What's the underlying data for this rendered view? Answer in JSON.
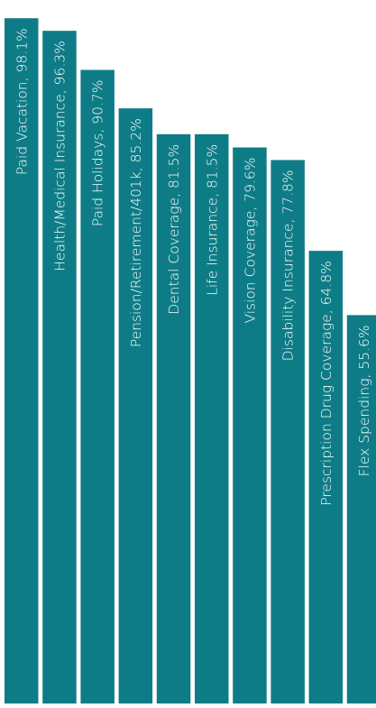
{
  "chart_data": {
    "type": "bar",
    "orientation": "vertical",
    "categories": [
      "Paid Vacation",
      "Health/Medical Insurance",
      "Paid Holidays",
      "Pension/Retirement/401k",
      "Dental Coverage",
      "Life Insurance",
      "Vision Coverage",
      "Disability Insurance",
      "Prescription Drug Coverage",
      "Flex Spending"
    ],
    "values": [
      98.1,
      96.3,
      90.7,
      85.2,
      81.5,
      81.5,
      79.6,
      77.8,
      64.8,
      55.6
    ],
    "labels": [
      "Paid Vacation, 98.1%",
      "Health/Medical Insurance, 96.3%",
      "Paid Holidays, 90.7%",
      "Pension/Retirement/401k, 85.2%",
      "Dental Coverage, 81.5%",
      "Life Insurance, 81.5%",
      "Vision Coverage, 79.6%",
      "Disability Insurance, 77.8%",
      "Prescription Drug Coverage, 64.8%",
      "Flex Spending, 55.6%"
    ],
    "unit": "%",
    "label_orientation": "rotated-vertical-inside-bar",
    "bar_color": "#0e7c86",
    "label_color": "#ffffff",
    "background_color": "#ffffff",
    "grid": false,
    "axes_visible": false,
    "ylim": [
      0,
      100
    ]
  }
}
